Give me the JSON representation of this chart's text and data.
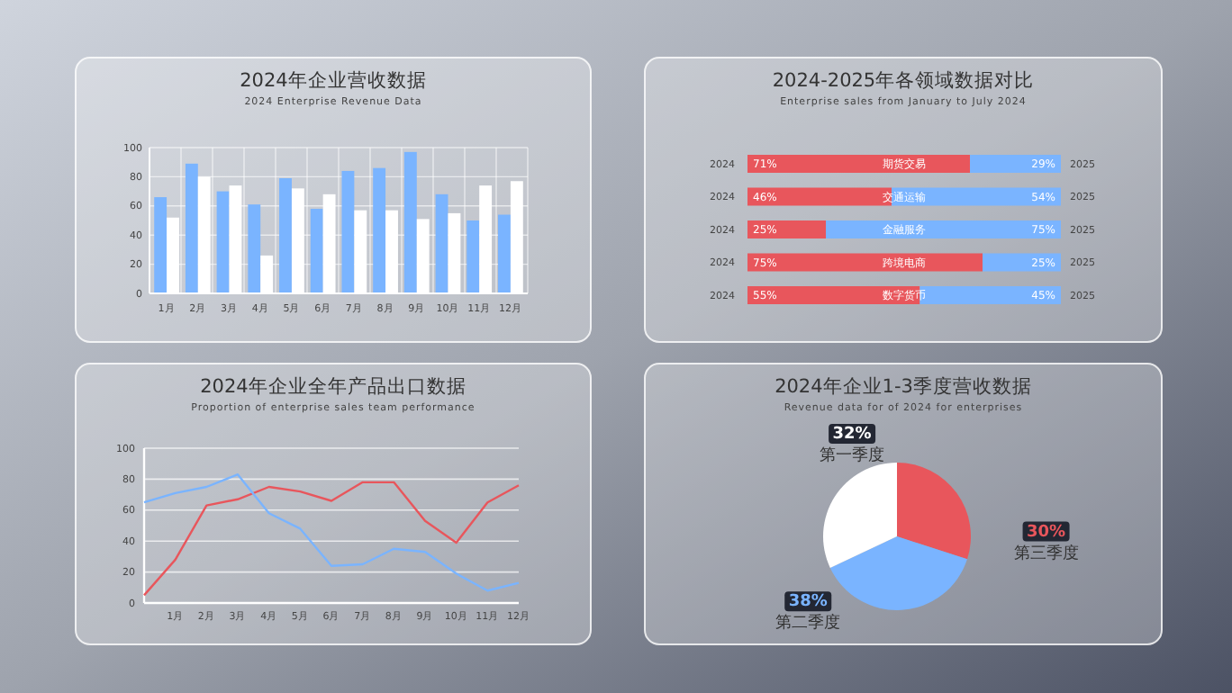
{
  "chart_data": [
    {
      "type": "bar",
      "title": "2024年企业营收数据",
      "subtitle": "2024 Enterprise Revenue Data",
      "categories": [
        "1月",
        "2月",
        "3月",
        "4月",
        "5月",
        "6月",
        "7月",
        "8月",
        "9月",
        "10月",
        "11月",
        "12月"
      ],
      "series": [
        {
          "color": "#7ab4ff",
          "values": [
            66,
            89,
            70,
            61,
            79,
            58,
            84,
            86,
            97,
            68,
            50,
            54
          ]
        },
        {
          "color": "#ffffff",
          "values": [
            52,
            80,
            74,
            26,
            72,
            68,
            57,
            57,
            51,
            55,
            74,
            77
          ]
        }
      ],
      "ylim": [
        0,
        100
      ],
      "yticks": [
        0,
        20,
        40,
        60,
        80,
        100
      ],
      "grid": true
    },
    {
      "type": "bar",
      "orientation": "horizontal",
      "stacked": true,
      "title": "2024-2025年各领域数据对比",
      "subtitle": "Enterprise sales from January to July 2024",
      "categories": [
        "期货交易",
        "交通运输",
        "金融服务",
        "跨境电商",
        "数字货币"
      ],
      "series": [
        {
          "name": "2024",
          "color": "#e8565c",
          "values": [
            71,
            46,
            25,
            75,
            55
          ],
          "value_labels": [
            "71%",
            "46%",
            "25%",
            "75%",
            "55%"
          ]
        },
        {
          "name": "2025",
          "color": "#7ab4ff",
          "values": [
            29,
            54,
            75,
            25,
            45
          ],
          "value_labels": [
            "29%",
            "54%",
            "75%",
            "25%",
            "45%"
          ]
        }
      ],
      "xlim": [
        0,
        100
      ]
    },
    {
      "type": "line",
      "title": "2024年企业全年产品出口数据",
      "subtitle": "Proportion of enterprise sales team performance",
      "categories": [
        null,
        "1月",
        "2月",
        "3月",
        "4月",
        "5月",
        "6月",
        "7月",
        "8月",
        "9月",
        "10月",
        "11月",
        "12月"
      ],
      "series": [
        {
          "color": "#e8565c",
          "values": [
            5,
            28,
            63,
            67,
            75,
            72,
            66,
            78,
            78,
            53,
            39,
            65,
            76
          ]
        },
        {
          "color": "#7ab4ff",
          "values": [
            65,
            71,
            75,
            83,
            58,
            48,
            24,
            25,
            35,
            33,
            19,
            8,
            13
          ]
        }
      ],
      "ylim": [
        0,
        100
      ],
      "yticks": [
        0,
        20,
        40,
        60,
        80,
        100
      ],
      "grid": "y"
    },
    {
      "type": "pie",
      "title": "2024年企业1-3季度营收数据",
      "subtitle": "Revenue data for  of 2024 for enterprises",
      "categories": [
        "第三季度",
        "第二季度",
        "第一季度"
      ],
      "values": [
        30,
        38,
        32
      ],
      "value_labels": [
        "30%",
        "38%",
        "32%"
      ],
      "colors": [
        "#e8565c",
        "#7ab4ff",
        "#ffffff"
      ]
    }
  ]
}
